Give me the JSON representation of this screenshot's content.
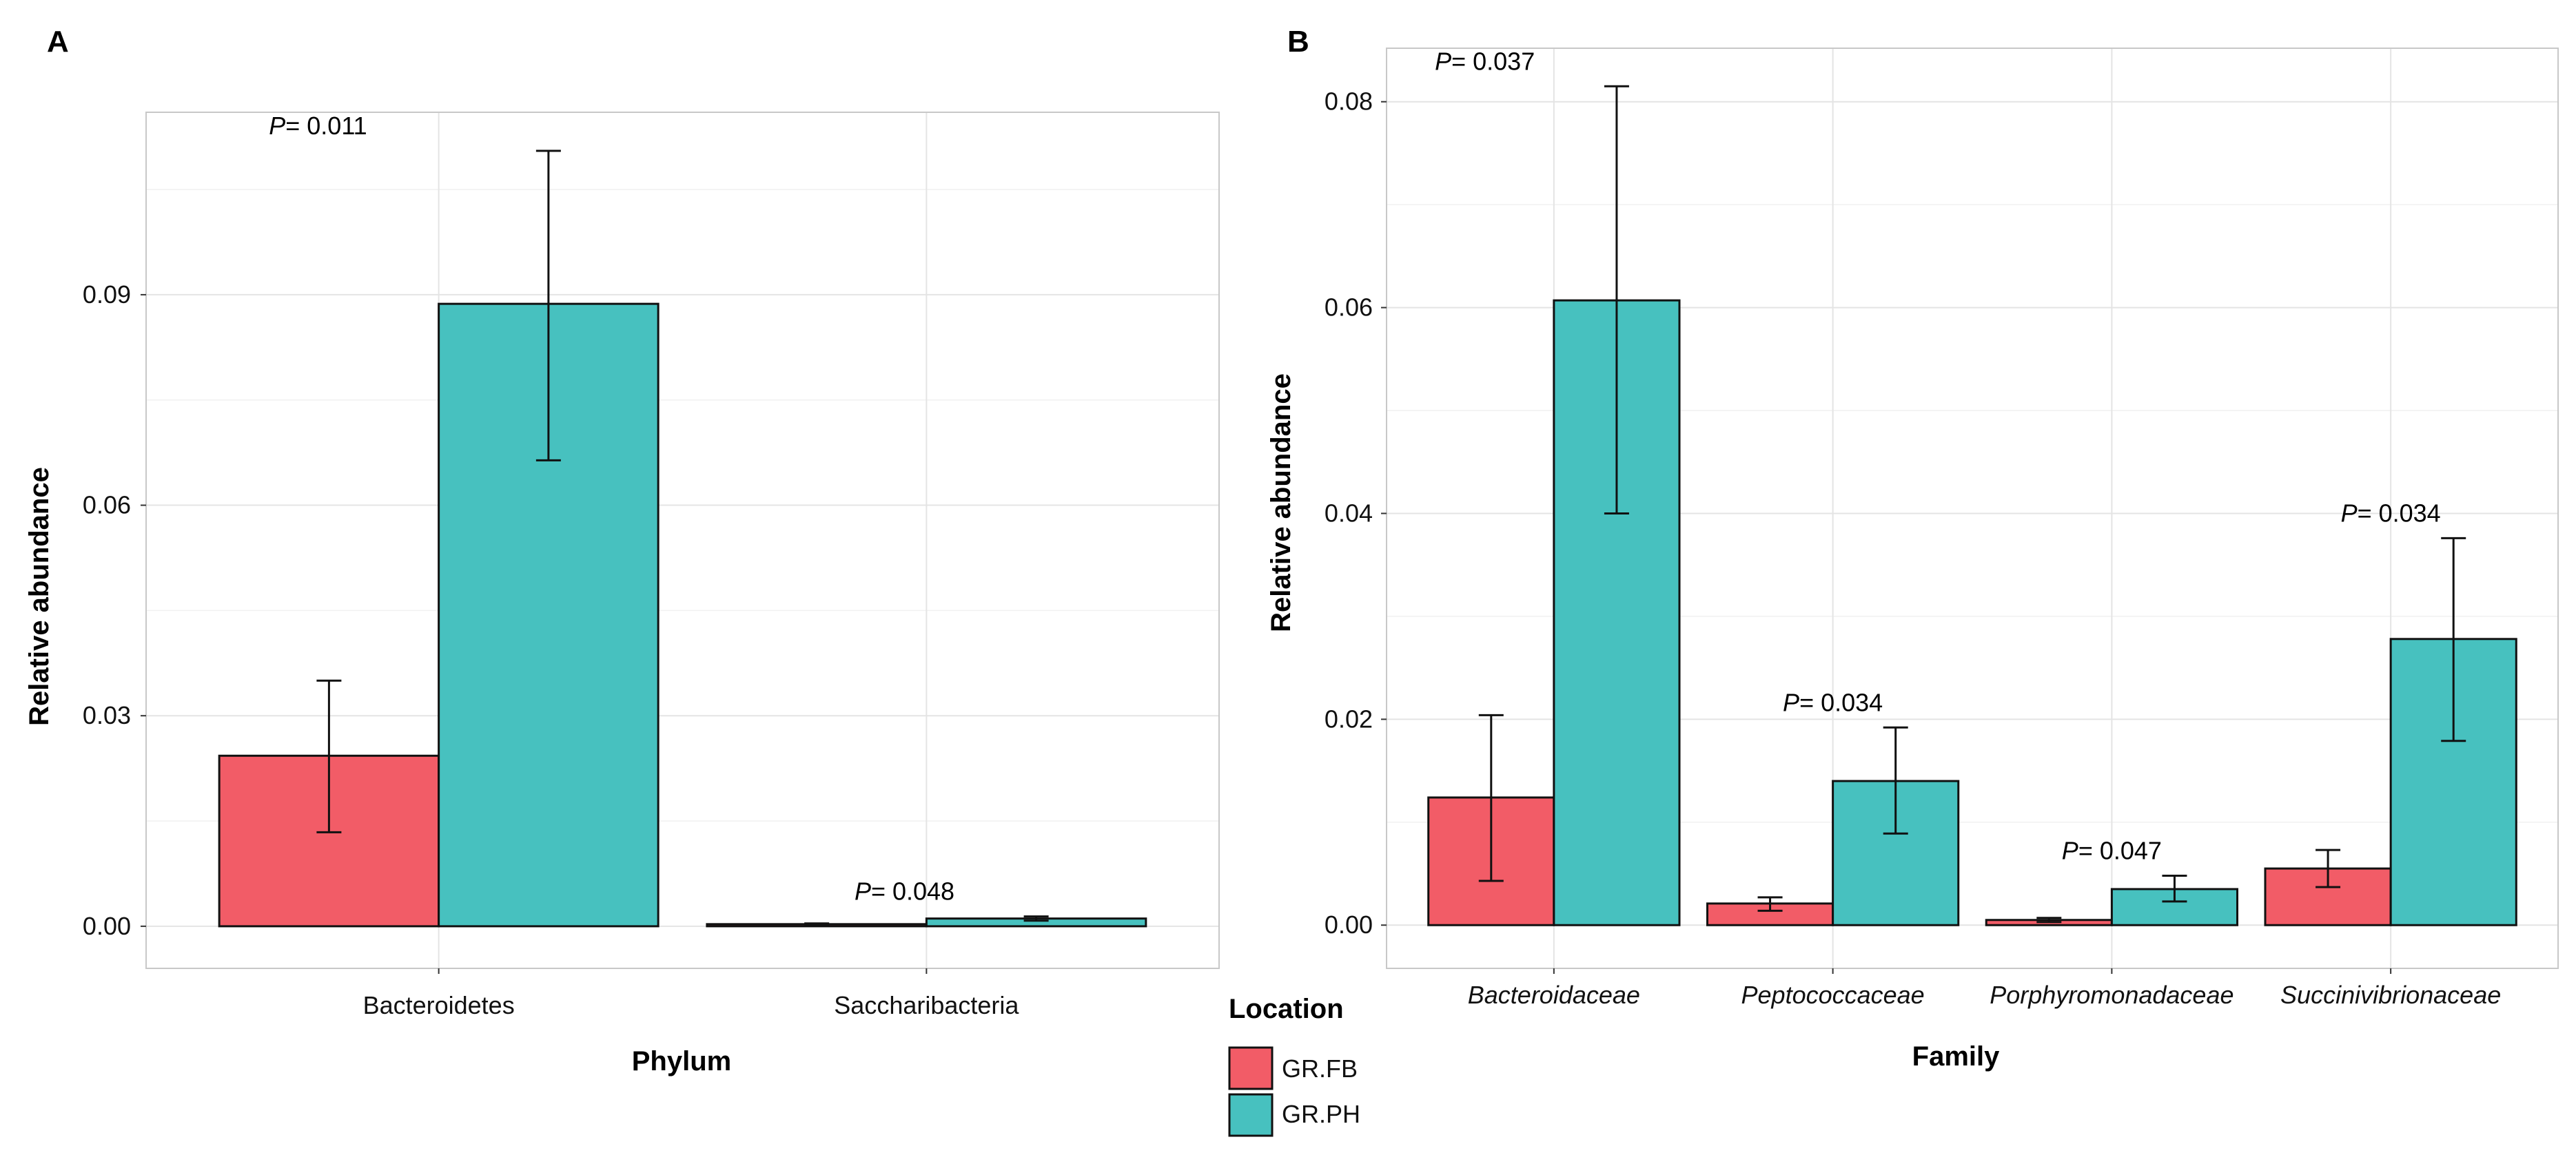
{
  "colors": {
    "GR.FB": "#f25c67",
    "GR.PH": "#47c1bf"
  },
  "legend": {
    "title": "Location",
    "entries": [
      "GR.FB",
      "GR.PH"
    ]
  },
  "chart_data": [
    {
      "panel": "A",
      "type": "bar",
      "xlabel": "Phylum",
      "ylabel": "Relative abundance",
      "categories": [
        "Bacteroidetes",
        "Saccharibacteria"
      ],
      "ylim": [
        -0.006,
        0.116
      ],
      "yticks": [
        0.0,
        0.03,
        0.06,
        0.09
      ],
      "ytick_labels": [
        "0.00",
        "0.03",
        "0.06",
        "0.09"
      ],
      "series": [
        {
          "name": "GR.FB",
          "values": [
            0.0243,
            0.0003
          ],
          "err_low": [
            0.0134,
            0.0002
          ],
          "err_high": [
            0.035,
            0.0004
          ]
        },
        {
          "name": "GR.PH",
          "values": [
            0.0887,
            0.0011
          ],
          "err_low": [
            0.0664,
            0.0008
          ],
          "err_high": [
            0.1105,
            0.0014
          ]
        }
      ],
      "p_values": [
        {
          "category": "Bacteroidetes",
          "prefix": "P",
          "text": "= 0.011"
        },
        {
          "category": "Saccharibacteria",
          "prefix": "P",
          "text": "= 0.048"
        }
      ]
    },
    {
      "panel": "B",
      "type": "bar",
      "xlabel": "Family",
      "ylabel": "Relative abundance",
      "categories": [
        "Bacteroidaceae",
        "Peptococcaceae",
        "Porphyromonadaceae",
        "Succinivibrionaceae"
      ],
      "ylim": [
        -0.0042,
        0.0852
      ],
      "yticks": [
        0.0,
        0.02,
        0.04,
        0.06,
        0.08
      ],
      "ytick_labels": [
        "0.00",
        "0.02",
        "0.04",
        "0.06",
        "0.08"
      ],
      "series": [
        {
          "name": "GR.FB",
          "values": [
            0.0124,
            0.0021,
            0.0005,
            0.0055
          ],
          "err_low": [
            0.0043,
            0.0014,
            0.0003,
            0.0037
          ],
          "err_high": [
            0.0204,
            0.0027,
            0.0007,
            0.0073
          ]
        },
        {
          "name": "GR.PH",
          "values": [
            0.0607,
            0.014,
            0.0035,
            0.0278
          ],
          "err_low": [
            0.04,
            0.0089,
            0.0023,
            0.0179
          ],
          "err_high": [
            0.0815,
            0.0192,
            0.0048,
            0.0376
          ]
        }
      ],
      "p_values": [
        {
          "category": "Bacteroidaceae",
          "prefix": "P",
          "text": "= 0.037"
        },
        {
          "category": "Peptococcaceae",
          "prefix": "P",
          "text": "= 0.034"
        },
        {
          "category": "Porphyromonadaceae",
          "prefix": "P",
          "text": "= 0.047"
        },
        {
          "category": "Succinivibrionaceae",
          "prefix": "P",
          "text": "= 0.034"
        }
      ]
    }
  ]
}
